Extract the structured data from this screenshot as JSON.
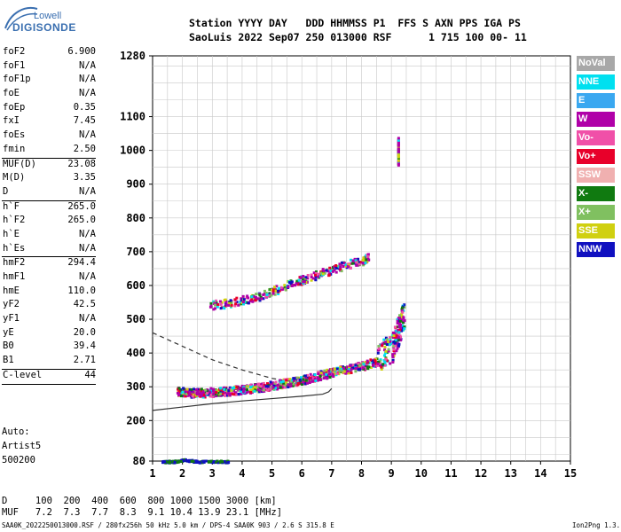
{
  "logo": {
    "line1": "Lowell",
    "line2": "DIGISONDE"
  },
  "header": {
    "line1": "Station YYYY DAY   DDD HHMMSS P1  FFS S AXN PPS IGA PS",
    "line2": "SaoLuis 2022 Sep07 250 013000 RSF      1 715 100 00- 11"
  },
  "params_group1": [
    {
      "k": "foF2",
      "v": "6.900"
    },
    {
      "k": "foF1",
      "v": "N/A"
    },
    {
      "k": "foF1p",
      "v": "N/A"
    },
    {
      "k": "foE",
      "v": "N/A"
    },
    {
      "k": "foEp",
      "v": "0.35"
    },
    {
      "k": "fxI",
      "v": "7.45"
    },
    {
      "k": "foEs",
      "v": "N/A"
    },
    {
      "k": "fmin",
      "v": "2.50"
    }
  ],
  "params_group2": [
    {
      "k": "MUF(D)",
      "v": "23.08"
    },
    {
      "k": "M(D)",
      "v": "3.35"
    },
    {
      "k": "D",
      "v": "N/A"
    }
  ],
  "params_group3": [
    {
      "k": "h`F",
      "v": "265.0"
    },
    {
      "k": "h`F2",
      "v": "265.0"
    },
    {
      "k": "h`E",
      "v": "N/A"
    },
    {
      "k": "h`Es",
      "v": "N/A"
    }
  ],
  "params_group4": [
    {
      "k": "hmF2",
      "v": "294.4"
    },
    {
      "k": "hmF1",
      "v": "N/A"
    },
    {
      "k": "hmE",
      "v": "110.0"
    },
    {
      "k": "yF2",
      "v": "42.5"
    },
    {
      "k": "yF1",
      "v": "N/A"
    },
    {
      "k": "yE",
      "v": "20.0"
    },
    {
      "k": "B0",
      "v": "39.4"
    },
    {
      "k": "B1",
      "v": "2.71"
    }
  ],
  "clevel": {
    "k": "C-level",
    "v": "44"
  },
  "auto": {
    "line1": "Auto:",
    "line2": "Artist5",
    "line3": "500200"
  },
  "legend": [
    {
      "label": "NoVal",
      "color": "#a8a8a8"
    },
    {
      "label": "NNE",
      "color": "#00e0f0"
    },
    {
      "label": "E",
      "color": "#3aa8f0"
    },
    {
      "label": "W",
      "color": "#b000a8"
    },
    {
      "label": "Vo-",
      "color": "#f050a8"
    },
    {
      "label": "Vo+",
      "color": "#e8002a"
    },
    {
      "label": "SSW",
      "color": "#f0b0b0"
    },
    {
      "label": "X-",
      "color": "#107a10"
    },
    {
      "label": "X+",
      "color": "#80c060"
    },
    {
      "label": "SSE",
      "color": "#d0d010"
    },
    {
      "label": "NNW",
      "color": "#1010c0"
    }
  ],
  "footer": {
    "line1": "D     100  200  400  600  800 1000 1500 3000 [km]",
    "line2": "MUF   7.2  7.3  7.7  8.3  9.1 10.4 13.9 23.1 [MHz]",
    "file": "SAA0K_2022250013000.RSF / 280fx256h 50 kHz 5.0 km / DPS-4 SAA0K 903 / 2.6 S 315.8 E",
    "version": "Ion2Png 1.3.17"
  },
  "chart_data": {
    "type": "scatter",
    "x_ticks": [
      1,
      2,
      3,
      4,
      5,
      6,
      7,
      8,
      9,
      10,
      11,
      12,
      13,
      14,
      15
    ],
    "y_ticks": [
      80,
      200,
      300,
      400,
      500,
      600,
      700,
      800,
      900,
      1000,
      1100,
      1280
    ],
    "xlim": [
      1,
      15
    ],
    "ylim": [
      80,
      1280
    ],
    "grid": true,
    "traces": [
      {
        "name": "F-trace",
        "mode": "W",
        "points": [
          [
            1.8,
            285
          ],
          [
            2.2,
            280
          ],
          [
            2.6,
            280
          ],
          [
            3.0,
            282
          ],
          [
            3.5,
            285
          ],
          [
            4.0,
            290
          ],
          [
            4.5,
            295
          ],
          [
            5.0,
            302
          ],
          [
            5.5,
            310
          ],
          [
            6.0,
            318
          ],
          [
            6.5,
            330
          ],
          [
            7.0,
            340
          ],
          [
            7.5,
            350
          ],
          [
            8.0,
            360
          ],
          [
            8.5,
            372
          ],
          [
            9.0,
            400
          ],
          [
            9.2,
            450
          ],
          [
            9.4,
            500
          ]
        ]
      },
      {
        "name": "2F-trace",
        "mode": "W",
        "points": [
          [
            2.9,
            540
          ],
          [
            3.5,
            545
          ],
          [
            4.0,
            555
          ],
          [
            4.5,
            565
          ],
          [
            5.0,
            580
          ],
          [
            5.5,
            600
          ],
          [
            6.0,
            615
          ],
          [
            6.5,
            630
          ],
          [
            7.0,
            645
          ],
          [
            7.5,
            660
          ],
          [
            8.0,
            670
          ],
          [
            8.2,
            680
          ]
        ]
      },
      {
        "name": "Es-low",
        "mode": "NNW",
        "points": [
          [
            1.3,
            80
          ],
          [
            1.7,
            80
          ],
          [
            2.0,
            85
          ],
          [
            2.5,
            80
          ],
          [
            3.0,
            80
          ],
          [
            3.5,
            80
          ]
        ]
      },
      {
        "name": "spread-vertical",
        "mode": "W",
        "points": [
          [
            9.2,
            960
          ],
          [
            9.2,
            1000
          ],
          [
            9.2,
            1040
          ]
        ]
      }
    ],
    "profile_solid": {
      "x": [
        1.0,
        2.0,
        3.0,
        4.0,
        5.0,
        6.0,
        6.7,
        6.9,
        7.0
      ],
      "y": [
        230,
        240,
        250,
        258,
        265,
        272,
        278,
        285,
        295
      ]
    },
    "profile_dashed": {
      "x": [
        1.0,
        2.0,
        3.0,
        4.0,
        5.0,
        6.0
      ],
      "y": [
        460,
        420,
        380,
        350,
        325,
        310
      ]
    }
  }
}
